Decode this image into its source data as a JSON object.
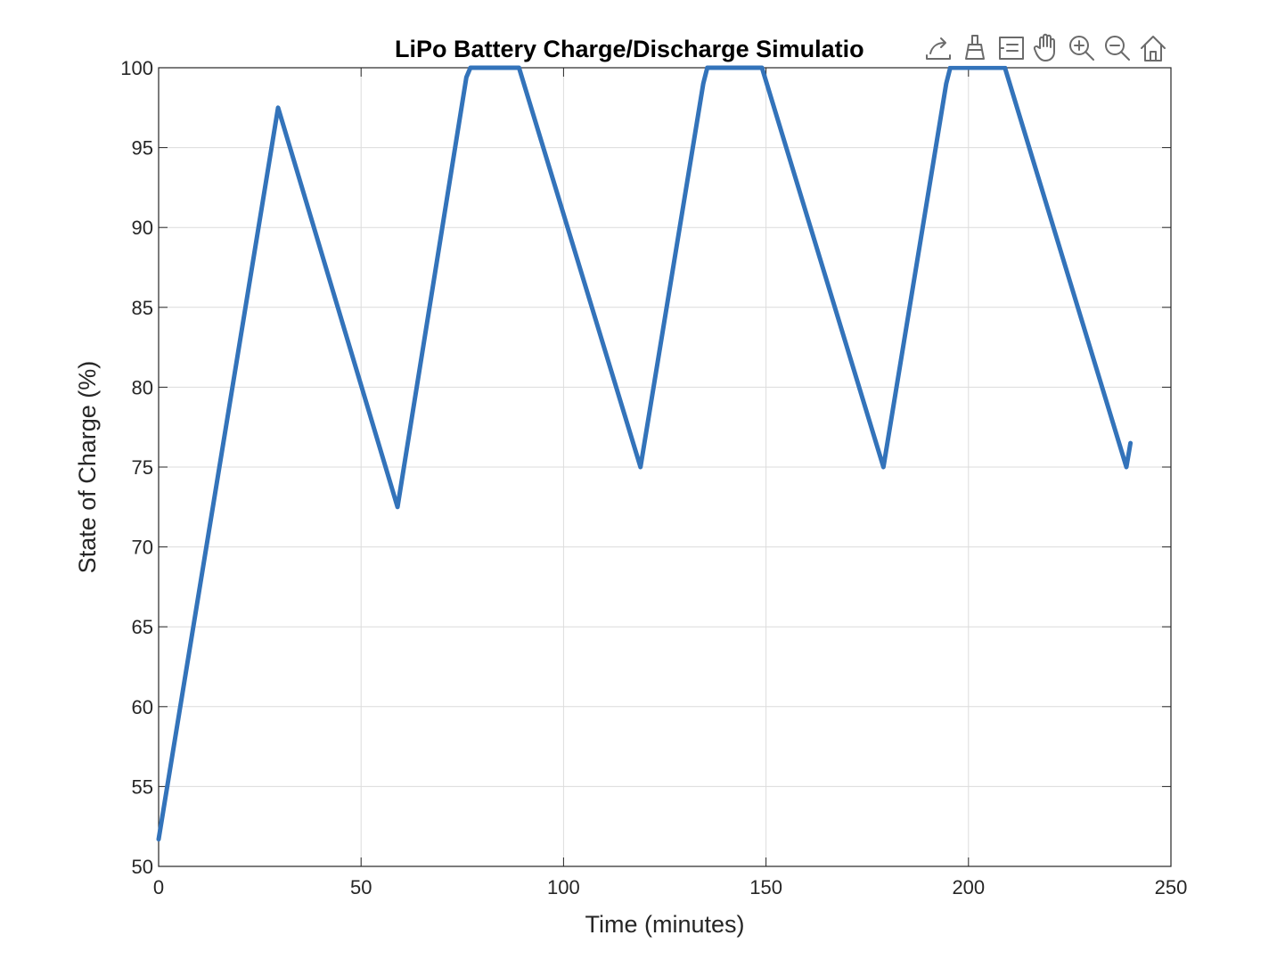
{
  "chart_data": {
    "type": "line",
    "title": "LiPo Battery Charge/Discharge Simulatio",
    "xlabel": "Time (minutes)",
    "ylabel": "State of Charge (%)",
    "xlim": [
      0,
      250
    ],
    "ylim": [
      50,
      100
    ],
    "xticks": [
      0,
      50,
      100,
      150,
      200,
      250
    ],
    "yticks": [
      50,
      55,
      60,
      65,
      70,
      75,
      80,
      85,
      90,
      95,
      100
    ],
    "grid": true,
    "legend": "none",
    "series": [
      {
        "color": "#3373ba",
        "x": [
          0,
          29.5,
          59,
          76,
          77,
          89,
          119,
          134.5,
          135.5,
          149,
          179,
          194.5,
          195.5,
          209,
          239,
          240
        ],
        "y": [
          51.7,
          97.5,
          72.5,
          99.4,
          100,
          100,
          75,
          99,
          100,
          100,
          75,
          99,
          100,
          100,
          75,
          76.5
        ]
      }
    ]
  },
  "toolbar": {
    "icons": [
      "export-icon",
      "brush-icon",
      "datatip-icon",
      "pan-hand-icon",
      "zoom-in-icon",
      "zoom-out-icon",
      "home-icon"
    ]
  }
}
